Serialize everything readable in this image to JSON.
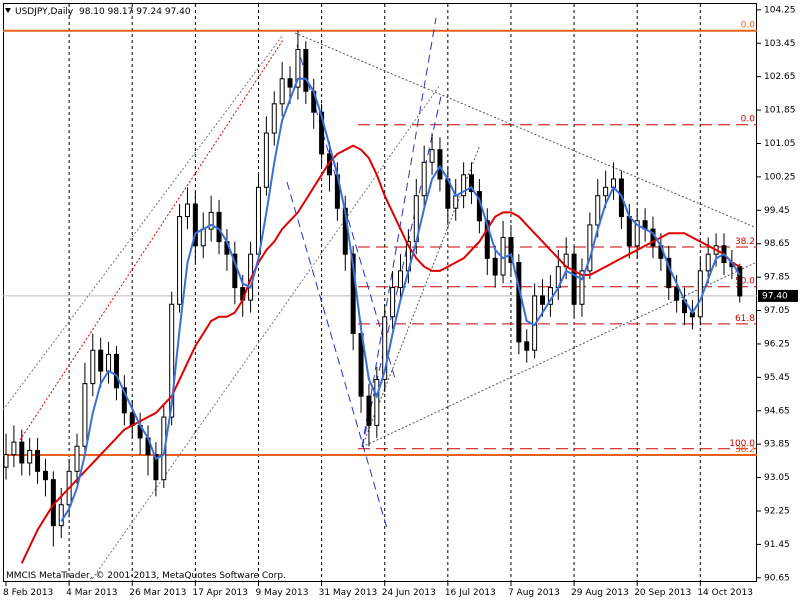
{
  "chart_data": {
    "type": "candlestick",
    "title": "USDJPY,Daily  98.10 98.17 97.24 97.40",
    "footer": "MMCIS MetaTrader, © 2001-2013, MetaQuotes Software Corp.",
    "last_price_label": "97.40",
    "ylim": [
      90.55,
      104.39
    ],
    "yticks": [
      104.25,
      103.45,
      102.65,
      101.85,
      101.05,
      100.25,
      99.45,
      98.65,
      97.85,
      97.05,
      96.25,
      95.45,
      94.65,
      93.85,
      93.05,
      92.25,
      91.45,
      90.65
    ],
    "grid": true,
    "up_color": "#ffffff",
    "down_color": "#000000",
    "categories": [
      "8 Feb 2013",
      null,
      null,
      null,
      null,
      null,
      null,
      null,
      "4 Mar 2013",
      null,
      null,
      null,
      null,
      null,
      null,
      null,
      "26 Mar 2013",
      null,
      null,
      null,
      null,
      null,
      null,
      null,
      "17 Apr 2013",
      null,
      null,
      null,
      null,
      null,
      null,
      null,
      "9 May 2013",
      null,
      null,
      null,
      null,
      null,
      null,
      null,
      "31 May 2013",
      null,
      null,
      null,
      null,
      null,
      null,
      null,
      "24 Jun 2013",
      null,
      null,
      null,
      null,
      null,
      null,
      null,
      "16 Jul 2013",
      null,
      null,
      null,
      null,
      null,
      null,
      null,
      "7 Aug 2013",
      null,
      null,
      null,
      null,
      null,
      null,
      null,
      "29 Aug 2013",
      null,
      null,
      null,
      null,
      null,
      null,
      null,
      "20 Sep 2013",
      null,
      null,
      null,
      null,
      null,
      null,
      null,
      "14 Oct 2013",
      null,
      null,
      null,
      null,
      null
    ],
    "open": [
      93.3,
      93.6,
      93.9,
      93.4,
      93.7,
      93.2,
      93.0,
      91.9,
      92.4,
      93.2,
      93.8,
      95.3,
      96.1,
      95.6,
      96.0,
      95.2,
      94.6,
      94.3,
      94.0,
      93.6,
      93.0,
      94.5,
      97.2,
      99.3,
      99.6,
      98.6,
      99.0,
      99.4,
      98.7,
      98.4,
      97.6,
      97.3,
      98.4,
      100.0,
      101.3,
      102.0,
      102.6,
      102.4,
      103.3,
      102.3,
      101.8,
      100.8,
      100.3,
      99.5,
      98.4,
      96.5,
      95.0,
      94.3,
      95.4,
      96.9,
      97.6,
      98.0,
      98.7,
      99.8,
      100.6,
      100.9,
      100.2,
      99.5,
      99.8,
      100.3,
      99.9,
      99.2,
      98.3,
      97.9,
      98.8,
      98.2,
      96.3,
      96.1,
      97.4,
      97.2,
      97.6,
      98.1,
      98.4,
      97.2,
      98.0,
      99.1,
      99.8,
      100.0,
      100.2,
      99.3,
      98.6,
      99.2,
      99.0,
      98.6,
      98.3,
      97.6,
      97.3,
      97.0,
      96.9,
      98.0,
      98.4,
      98.6,
      98.2,
      98.1
    ],
    "high": [
      94.1,
      94.3,
      94.2,
      94.0,
      94.0,
      93.5,
      93.2,
      92.8,
      93.5,
      94.1,
      95.8,
      96.5,
      96.4,
      96.3,
      96.2,
      95.5,
      94.9,
      94.6,
      94.3,
      93.9,
      94.8,
      97.5,
      99.6,
      100.0,
      99.9,
      99.4,
      99.8,
      99.7,
      99.0,
      98.7,
      97.9,
      98.7,
      100.3,
      101.7,
      102.3,
      103.0,
      102.9,
      103.75,
      103.5,
      102.6,
      102.0,
      101.1,
      100.6,
      99.8,
      98.6,
      96.8,
      95.3,
      95.7,
      97.2,
      98.0,
      98.4,
      99.0,
      100.2,
      101.0,
      101.3,
      101.2,
      100.5,
      100.2,
      100.6,
      100.6,
      100.2,
      99.5,
      98.6,
      99.2,
      99.1,
      98.4,
      96.6,
      97.7,
      97.8,
      97.9,
      98.5,
      98.8,
      98.6,
      98.3,
      99.4,
      100.2,
      100.4,
      100.6,
      100.4,
      99.6,
      99.5,
      99.5,
      99.3,
      98.9,
      98.6,
      97.9,
      97.6,
      97.3,
      98.3,
      98.8,
      98.9,
      98.9,
      98.5,
      98.17
    ],
    "low": [
      93.0,
      93.3,
      93.1,
      93.1,
      92.9,
      92.6,
      91.4,
      91.6,
      92.1,
      92.9,
      93.6,
      95.0,
      95.2,
      95.3,
      94.9,
      94.3,
      94.0,
      93.6,
      93.1,
      92.6,
      92.8,
      94.3,
      97.0,
      99.0,
      98.2,
      98.3,
      98.7,
      98.4,
      98.0,
      97.2,
      96.9,
      97.0,
      98.2,
      99.8,
      101.0,
      101.7,
      102.0,
      102.1,
      102.0,
      101.4,
      100.5,
      99.9,
      99.2,
      98.0,
      96.1,
      94.6,
      93.8,
      94.0,
      95.1,
      96.6,
      97.3,
      97.7,
      98.4,
      99.5,
      100.3,
      99.9,
      99.1,
      99.2,
      99.5,
      99.6,
      98.9,
      97.9,
      97.6,
      97.7,
      97.9,
      96.0,
      95.8,
      95.9,
      96.9,
      96.9,
      97.3,
      97.8,
      96.9,
      96.9,
      97.8,
      98.8,
      99.5,
      99.7,
      99.0,
      98.3,
      98.3,
      98.7,
      98.3,
      98.0,
      97.3,
      97.0,
      96.7,
      96.6,
      96.7,
      97.7,
      98.1,
      97.9,
      97.8,
      97.24
    ],
    "close": [
      93.6,
      93.9,
      93.4,
      93.7,
      93.2,
      93.0,
      91.9,
      92.4,
      93.2,
      93.8,
      95.3,
      96.1,
      95.6,
      96.0,
      95.2,
      94.6,
      94.3,
      94.0,
      93.6,
      93.0,
      94.5,
      97.2,
      99.3,
      99.6,
      98.6,
      99.0,
      99.4,
      98.7,
      98.4,
      97.6,
      97.3,
      98.4,
      100.0,
      101.3,
      102.0,
      102.6,
      102.4,
      103.3,
      102.3,
      101.8,
      100.8,
      100.3,
      99.5,
      98.4,
      96.5,
      95.0,
      94.3,
      95.4,
      96.9,
      97.6,
      98.0,
      98.7,
      99.8,
      100.6,
      100.9,
      100.2,
      99.5,
      99.8,
      100.3,
      99.9,
      99.2,
      98.3,
      97.9,
      98.8,
      98.2,
      96.3,
      96.1,
      97.4,
      97.2,
      97.6,
      98.1,
      98.4,
      97.2,
      98.0,
      99.1,
      99.8,
      100.0,
      100.2,
      99.3,
      98.6,
      99.2,
      99.0,
      98.6,
      98.3,
      97.6,
      97.3,
      97.0,
      96.9,
      98.0,
      98.4,
      98.6,
      98.2,
      98.1,
      97.4
    ],
    "moving_averages": [
      {
        "color": "#e00000",
        "values": [
          null,
          null,
          91.0,
          91.4,
          91.8,
          92.1,
          92.4,
          92.6,
          92.8,
          93.0,
          93.2,
          93.4,
          93.6,
          93.8,
          94.0,
          94.2,
          94.3,
          94.4,
          94.5,
          94.6,
          94.8,
          95.0,
          95.4,
          95.8,
          96.2,
          96.5,
          96.8,
          96.9,
          96.9,
          97.0,
          97.3,
          97.8,
          98.2,
          98.5,
          98.7,
          99.0,
          99.2,
          99.4,
          99.7,
          100.0,
          100.3,
          100.6,
          100.8,
          100.9,
          101.0,
          100.9,
          100.7,
          100.3,
          99.8,
          99.4,
          99.0,
          98.6,
          98.3,
          98.1,
          98.0,
          98.0,
          98.1,
          98.2,
          98.3,
          98.5,
          98.7,
          99.0,
          99.3,
          99.4,
          99.4,
          99.3,
          99.1,
          98.9,
          98.7,
          98.5,
          98.3,
          98.1,
          98.0,
          97.9,
          97.9,
          98.0,
          98.1,
          98.2,
          98.3,
          98.4,
          98.5,
          98.6,
          98.7,
          98.8,
          98.9,
          98.9,
          98.9,
          98.8,
          98.7,
          98.6,
          98.5,
          98.4,
          98.2,
          98.1
        ]
      },
      {
        "color": "#3a6fd8",
        "values": [
          null,
          null,
          null,
          null,
          null,
          null,
          null,
          92.0,
          92.3,
          92.8,
          93.6,
          94.6,
          95.3,
          95.6,
          95.5,
          95.1,
          94.7,
          94.3,
          94.0,
          93.5,
          93.6,
          94.8,
          96.6,
          98.2,
          98.9,
          99.0,
          99.1,
          99.0,
          98.7,
          98.2,
          97.7,
          97.6,
          98.3,
          99.4,
          100.6,
          101.6,
          102.1,
          102.6,
          102.6,
          102.3,
          101.7,
          101.0,
          100.3,
          99.4,
          98.1,
          96.6,
          95.4,
          95.0,
          95.6,
          96.5,
          97.3,
          98.0,
          98.7,
          99.5,
          100.2,
          100.5,
          100.2,
          99.8,
          99.9,
          100.0,
          99.7,
          99.1,
          98.5,
          98.3,
          98.4,
          97.6,
          96.8,
          96.7,
          97.0,
          97.3,
          97.6,
          98.0,
          97.9,
          97.8,
          98.3,
          99.0,
          99.6,
          100.0,
          99.8,
          99.3,
          99.1,
          99.0,
          98.9,
          98.6,
          98.1,
          97.7,
          97.3,
          97.0,
          97.3,
          97.8,
          98.3,
          98.4,
          98.2,
          97.9
        ]
      }
    ],
    "levels": [
      {
        "value": 103.75,
        "label": "0.0",
        "color": "#e8601c",
        "dashed": false
      },
      {
        "value": 93.59,
        "label": "38.2",
        "color": "#e8601c",
        "dashed": false
      },
      {
        "value": 101.5,
        "label": "0.0",
        "color": "#cc0000",
        "dashed": true
      },
      {
        "value": 98.57,
        "label": "38.2",
        "color": "#cc0000",
        "dashed": true
      },
      {
        "value": 97.62,
        "label": "50.0",
        "color": "#cc0000",
        "dashed": true
      },
      {
        "value": 96.73,
        "label": "61.8",
        "color": "#cc0000",
        "dashed": true
      },
      {
        "value": 93.74,
        "label": "100.0",
        "color": "#cc0000",
        "dashed": true
      }
    ]
  }
}
